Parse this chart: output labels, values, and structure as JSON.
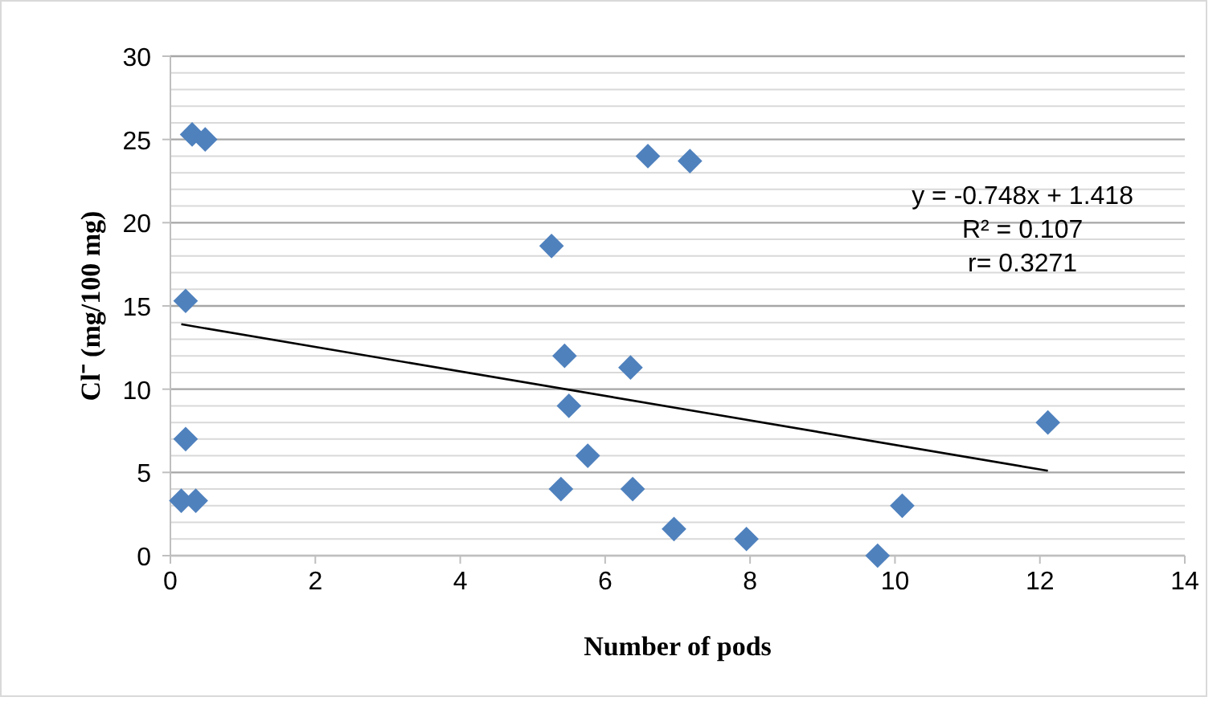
{
  "chart_data": {
    "type": "scatter",
    "xlabel": "Number of pods",
    "ylabel": "Cl⁻ (mg/100 mg)",
    "xlim": [
      0,
      14
    ],
    "xticks": [
      0,
      2,
      4,
      6,
      8,
      10,
      12,
      14
    ],
    "ylim": [
      0,
      30
    ],
    "yticks": [
      0,
      {
        "value": 1,
        "label": null
      },
      {
        "value": 2,
        "label": null
      },
      {
        "value": 3,
        "label": null
      },
      {
        "value": 4,
        "label": null
      },
      5,
      {
        "value": 6,
        "label": null
      },
      {
        "value": 7,
        "label": null
      },
      {
        "value": 8,
        "label": null
      },
      {
        "value": 9,
        "label": null
      },
      10,
      {
        "value": 11,
        "label": null
      },
      {
        "value": 12,
        "label": null
      },
      {
        "value": 13,
        "label": null
      },
      {
        "value": 14,
        "label": null
      },
      15,
      {
        "value": 16,
        "label": null
      },
      {
        "value": 17,
        "label": null
      },
      {
        "value": 18,
        "label": null
      },
      {
        "value": 19,
        "label": null
      },
      20,
      {
        "value": 21,
        "label": null
      },
      {
        "value": 22,
        "label": null
      },
      {
        "value": 23,
        "label": null
      },
      {
        "value": 24,
        "label": null
      },
      25,
      {
        "value": 26,
        "label": null
      },
      {
        "value": 27,
        "label": null
      },
      {
        "value": 28,
        "label": null
      },
      {
        "value": 29,
        "label": null
      },
      30
    ],
    "grid": "y",
    "marker": "diamond",
    "series": [
      {
        "color": "#4f81bd",
        "x": [
          0.15,
          0.35,
          0.21,
          0.21,
          0.3,
          0.48,
          5.26,
          5.44,
          5.5,
          5.76,
          5.39,
          6.59,
          7.17,
          6.35,
          6.38,
          6.95,
          7.95,
          9.76,
          10.1,
          12.11
        ],
        "values": [
          3.3,
          3.3,
          7.0,
          15.3,
          25.3,
          25.0,
          18.6,
          12.0,
          9.0,
          6.0,
          4.0,
          24.0,
          23.7,
          11.3,
          4.0,
          1.6,
          1.0,
          0,
          3.0,
          8.0
        ]
      },
      {
        "type": "line",
        "color": "#000000",
        "marker": "none",
        "x": [
          0.15,
          12.11
        ],
        "values": [
          13.9,
          5.1
        ]
      }
    ],
    "annotations": [
      "y = -0.748x + 1.418",
      "R² = 0.107",
      "r= 0.3271"
    ]
  }
}
